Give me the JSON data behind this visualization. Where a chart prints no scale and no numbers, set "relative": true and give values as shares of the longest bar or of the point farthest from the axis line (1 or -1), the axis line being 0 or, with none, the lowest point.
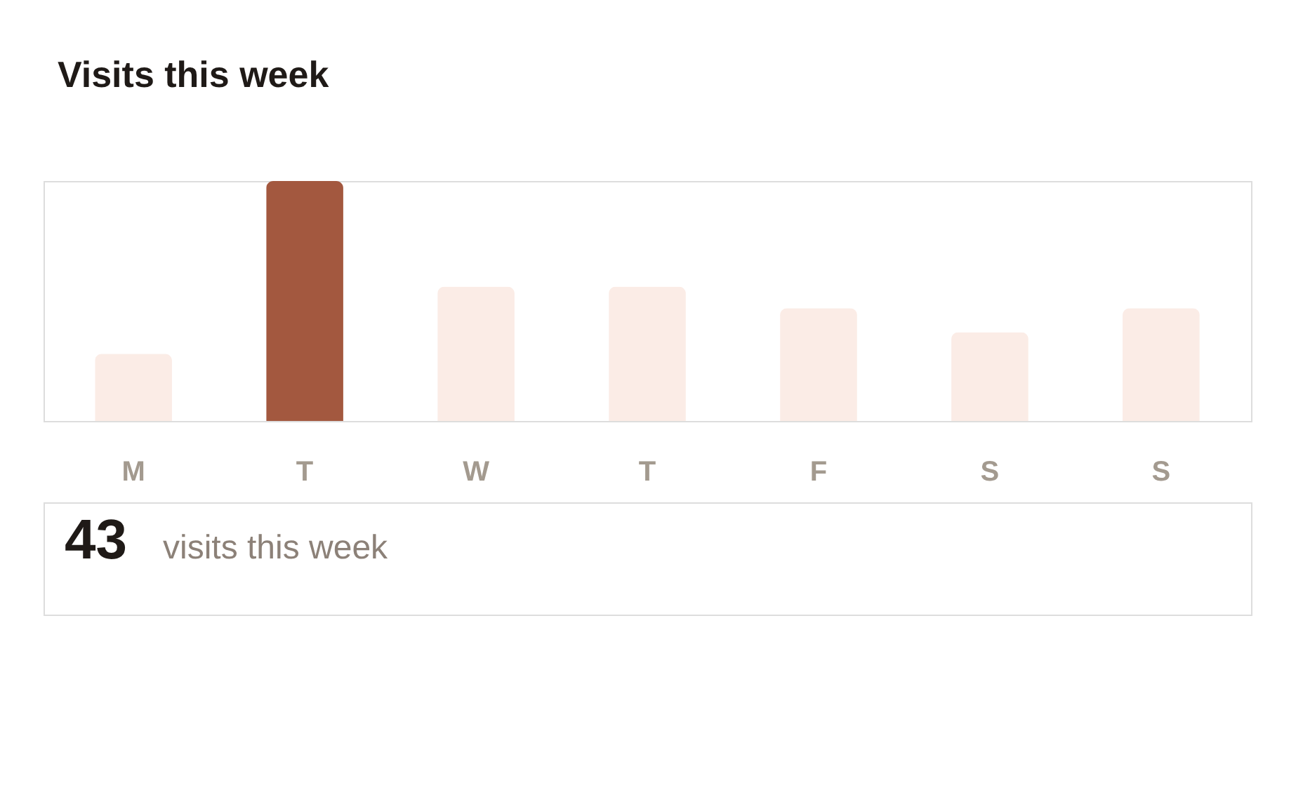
{
  "chart_data": {
    "type": "bar",
    "title": "Visits this week",
    "categories": [
      "M",
      "T",
      "W",
      "T",
      "F",
      "S",
      "S"
    ],
    "values": [
      0.28,
      1,
      0.56,
      0.56,
      0.47,
      0.37,
      0.47
    ],
    "colors": [
      "#fbece6",
      "#a3583f",
      "#fbece6",
      "#fbece6",
      "#fbece6",
      "#fbece6",
      "#fbece6"
    ],
    "relative": true,
    "annotations": [
      "43",
      "visits this week"
    ]
  }
}
